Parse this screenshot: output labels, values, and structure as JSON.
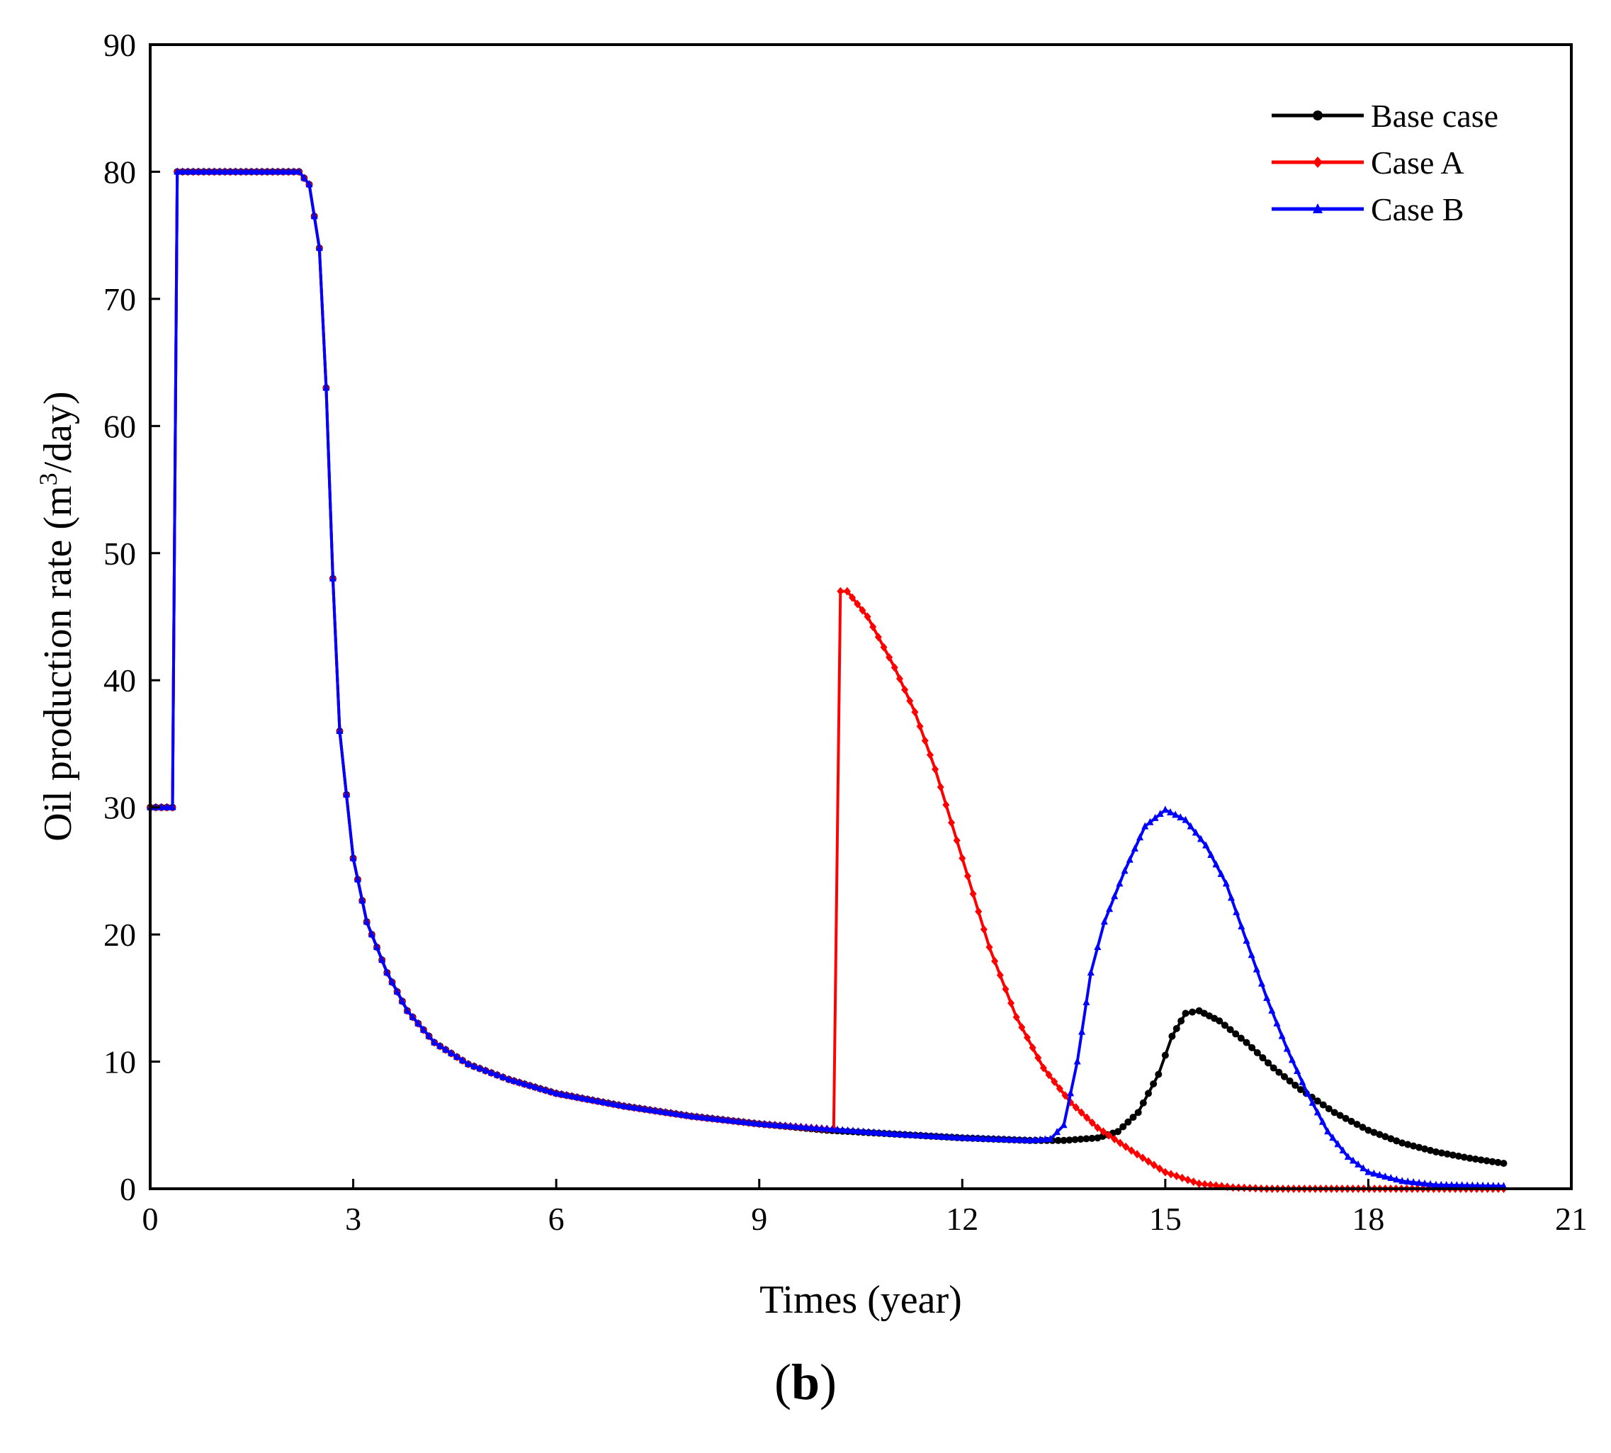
{
  "chart_data": {
    "type": "line",
    "title": "",
    "xlabel": "Times (year)",
    "ylabel_main": "Oil production rate (m",
    "ylabel_sup": "3",
    "ylabel_tail": "/day)",
    "xlim": [
      0,
      21
    ],
    "ylim": [
      0,
      90
    ],
    "xticks": [
      0,
      3,
      6,
      9,
      12,
      15,
      18,
      21
    ],
    "yticks": [
      0,
      10,
      20,
      30,
      40,
      50,
      60,
      70,
      80,
      90
    ],
    "grid": false,
    "legend_position": "top-right",
    "panel_label_open": "(",
    "panel_label_letter": "b",
    "panel_label_close": ")",
    "series": [
      {
        "name": "Base case",
        "color": "#000000",
        "marker": "circle",
        "points": [
          [
            0,
            30
          ],
          [
            0.33,
            30
          ],
          [
            0.4,
            80
          ],
          [
            2.2,
            80
          ],
          [
            2.35,
            79
          ],
          [
            2.5,
            74
          ],
          [
            2.6,
            63
          ],
          [
            2.7,
            48
          ],
          [
            2.8,
            36
          ],
          [
            2.9,
            31
          ],
          [
            3.0,
            26
          ],
          [
            3.2,
            21
          ],
          [
            3.5,
            17
          ],
          [
            3.8,
            14
          ],
          [
            4.2,
            11.5
          ],
          [
            4.7,
            9.8
          ],
          [
            5.3,
            8.6
          ],
          [
            6,
            7.5
          ],
          [
            7,
            6.5
          ],
          [
            8,
            5.7
          ],
          [
            9,
            5.1
          ],
          [
            10,
            4.6
          ],
          [
            11,
            4.3
          ],
          [
            12,
            4
          ],
          [
            13,
            3.8
          ],
          [
            13.5,
            3.8
          ],
          [
            14,
            4.0
          ],
          [
            14.3,
            4.5
          ],
          [
            14.6,
            6
          ],
          [
            14.9,
            9
          ],
          [
            15.1,
            12
          ],
          [
            15.3,
            13.8
          ],
          [
            15.5,
            14
          ],
          [
            15.8,
            13.2
          ],
          [
            16.2,
            11.5
          ],
          [
            16.6,
            9.5
          ],
          [
            17,
            7.8
          ],
          [
            17.5,
            6
          ],
          [
            18,
            4.6
          ],
          [
            18.5,
            3.6
          ],
          [
            19,
            2.9
          ],
          [
            19.5,
            2.4
          ],
          [
            20,
            2
          ]
        ]
      },
      {
        "name": "Case A",
        "color": "#ff0000",
        "marker": "diamond",
        "points": [
          [
            0,
            30
          ],
          [
            0.33,
            30
          ],
          [
            0.4,
            80
          ],
          [
            2.2,
            80
          ],
          [
            2.35,
            79
          ],
          [
            2.5,
            74
          ],
          [
            2.6,
            63
          ],
          [
            2.7,
            48
          ],
          [
            2.8,
            36
          ],
          [
            2.9,
            31
          ],
          [
            3.0,
            26
          ],
          [
            3.2,
            21
          ],
          [
            3.5,
            17
          ],
          [
            3.8,
            14
          ],
          [
            4.2,
            11.5
          ],
          [
            4.7,
            9.8
          ],
          [
            5.3,
            8.6
          ],
          [
            6,
            7.5
          ],
          [
            7,
            6.5
          ],
          [
            8,
            5.7
          ],
          [
            9,
            5.1
          ],
          [
            10,
            4.7
          ],
          [
            10.1,
            4.7
          ],
          [
            10.2,
            47
          ],
          [
            10.3,
            47
          ],
          [
            10.6,
            45
          ],
          [
            11,
            41
          ],
          [
            11.3,
            37.5
          ],
          [
            11.6,
            33
          ],
          [
            12,
            26
          ],
          [
            12.4,
            19
          ],
          [
            12.8,
            13.5
          ],
          [
            13.2,
            9.5
          ],
          [
            13.6,
            6.8
          ],
          [
            14,
            4.8
          ],
          [
            14.5,
            3
          ],
          [
            15,
            1.3
          ],
          [
            15.5,
            0.4
          ],
          [
            16,
            0.1
          ],
          [
            16.5,
            0
          ],
          [
            20,
            0
          ]
        ]
      },
      {
        "name": "Case B",
        "color": "#0000ff",
        "marker": "triangle",
        "points": [
          [
            0,
            30
          ],
          [
            0.33,
            30
          ],
          [
            0.4,
            80
          ],
          [
            2.2,
            80
          ],
          [
            2.35,
            79
          ],
          [
            2.5,
            74
          ],
          [
            2.6,
            63
          ],
          [
            2.7,
            48
          ],
          [
            2.8,
            36
          ],
          [
            2.9,
            31
          ],
          [
            3.0,
            26
          ],
          [
            3.2,
            21
          ],
          [
            3.5,
            17
          ],
          [
            3.8,
            14
          ],
          [
            4.2,
            11.5
          ],
          [
            4.7,
            9.8
          ],
          [
            5.3,
            8.6
          ],
          [
            6,
            7.5
          ],
          [
            7,
            6.5
          ],
          [
            8,
            5.7
          ],
          [
            9,
            5.1
          ],
          [
            10,
            4.7
          ],
          [
            11,
            4.3
          ],
          [
            12,
            4
          ],
          [
            13,
            3.8
          ],
          [
            13.3,
            3.9
          ],
          [
            13.5,
            5
          ],
          [
            13.7,
            10
          ],
          [
            13.9,
            17
          ],
          [
            14.1,
            21
          ],
          [
            14.4,
            25
          ],
          [
            14.7,
            28.5
          ],
          [
            15,
            29.8
          ],
          [
            15.3,
            29
          ],
          [
            15.6,
            27
          ],
          [
            15.9,
            24
          ],
          [
            16.2,
            19.5
          ],
          [
            16.5,
            15
          ],
          [
            16.8,
            11
          ],
          [
            17.1,
            7.5
          ],
          [
            17.4,
            4.5
          ],
          [
            17.7,
            2.5
          ],
          [
            18,
            1.3
          ],
          [
            18.5,
            0.6
          ],
          [
            19,
            0.3
          ],
          [
            20,
            0.2
          ]
        ]
      }
    ]
  }
}
